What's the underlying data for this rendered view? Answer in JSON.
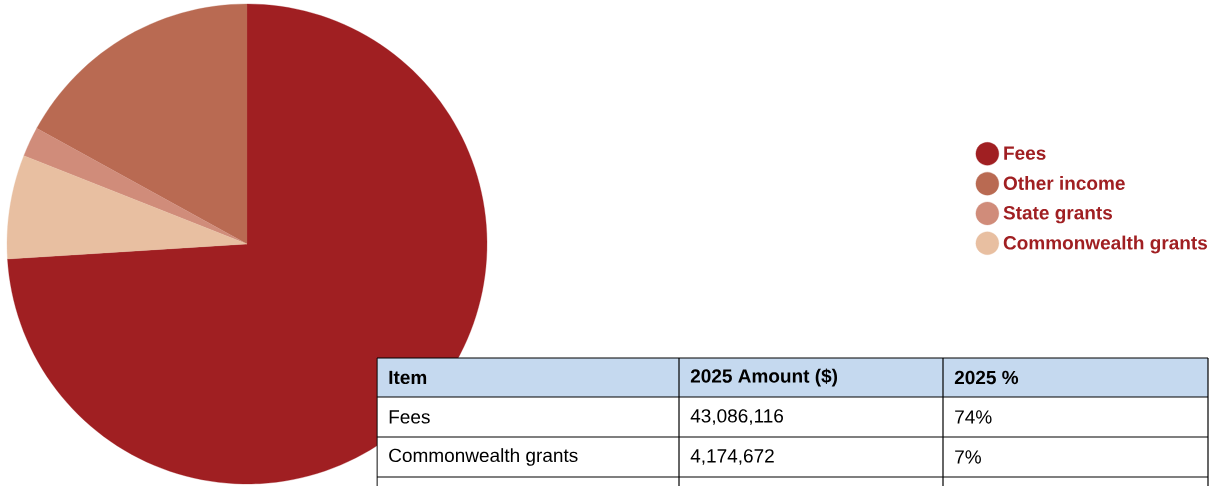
{
  "chart_data": {
    "type": "pie",
    "categories": [
      "Fees",
      "Other income",
      "State grants",
      "Commonwealth grants"
    ],
    "values": [
      74,
      17,
      2,
      7
    ],
    "colors": [
      "#a01f22",
      "#b96a52",
      "#d08c7a",
      "#e8bfa1"
    ],
    "legend": "right",
    "annotations": [
      "Item",
      "2025 Amount ($)",
      "2025 %",
      "Fees",
      "43,086,116",
      "74%",
      "Commonwealth grants",
      "4,174,672",
      "7%"
    ]
  }
}
